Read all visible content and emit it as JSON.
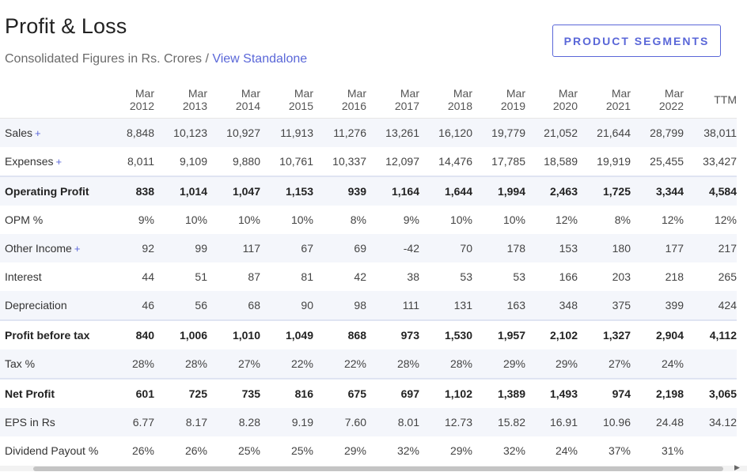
{
  "header": {
    "title": "Profit & Loss",
    "subtitle": "Consolidated Figures in Rs. Crores",
    "separator": " / ",
    "link": "View Standalone",
    "segments_button": "PRODUCT SEGMENTS"
  },
  "table": {
    "columns": [
      {
        "line1": "Mar",
        "line2": "2012"
      },
      {
        "line1": "Mar",
        "line2": "2013"
      },
      {
        "line1": "Mar",
        "line2": "2014"
      },
      {
        "line1": "Mar",
        "line2": "2015"
      },
      {
        "line1": "Mar",
        "line2": "2016"
      },
      {
        "line1": "Mar",
        "line2": "2017"
      },
      {
        "line1": "Mar",
        "line2": "2018"
      },
      {
        "line1": "Mar",
        "line2": "2019"
      },
      {
        "line1": "Mar",
        "line2": "2020"
      },
      {
        "line1": "Mar",
        "line2": "2021"
      },
      {
        "line1": "Mar",
        "line2": "2022"
      },
      {
        "line1": "TTM",
        "line2": ""
      }
    ],
    "rows": [
      {
        "label": "Sales",
        "expandable": true,
        "bold": false,
        "values": [
          "8,848",
          "10,123",
          "10,927",
          "11,913",
          "11,276",
          "13,261",
          "16,120",
          "19,779",
          "21,052",
          "21,644",
          "28,799",
          "38,011"
        ]
      },
      {
        "label": "Expenses",
        "expandable": true,
        "bold": false,
        "values": [
          "8,011",
          "9,109",
          "9,880",
          "10,761",
          "10,337",
          "12,097",
          "14,476",
          "17,785",
          "18,589",
          "19,919",
          "25,455",
          "33,427"
        ]
      },
      {
        "label": "Operating Profit",
        "expandable": false,
        "bold": true,
        "values": [
          "838",
          "1,014",
          "1,047",
          "1,153",
          "939",
          "1,164",
          "1,644",
          "1,994",
          "2,463",
          "1,725",
          "3,344",
          "4,584"
        ]
      },
      {
        "label": "OPM %",
        "expandable": false,
        "bold": false,
        "values": [
          "9%",
          "10%",
          "10%",
          "10%",
          "8%",
          "9%",
          "10%",
          "10%",
          "12%",
          "8%",
          "12%",
          "12%"
        ]
      },
      {
        "label": "Other Income",
        "expandable": true,
        "bold": false,
        "values": [
          "92",
          "99",
          "117",
          "67",
          "69",
          "-42",
          "70",
          "178",
          "153",
          "180",
          "177",
          "217"
        ]
      },
      {
        "label": "Interest",
        "expandable": false,
        "bold": false,
        "values": [
          "44",
          "51",
          "87",
          "81",
          "42",
          "38",
          "53",
          "53",
          "166",
          "203",
          "218",
          "265"
        ]
      },
      {
        "label": "Depreciation",
        "expandable": false,
        "bold": false,
        "values": [
          "46",
          "56",
          "68",
          "90",
          "98",
          "111",
          "131",
          "163",
          "348",
          "375",
          "399",
          "424"
        ]
      },
      {
        "label": "Profit before tax",
        "expandable": false,
        "bold": true,
        "values": [
          "840",
          "1,006",
          "1,010",
          "1,049",
          "868",
          "973",
          "1,530",
          "1,957",
          "2,102",
          "1,327",
          "2,904",
          "4,112"
        ]
      },
      {
        "label": "Tax %",
        "expandable": false,
        "bold": false,
        "values": [
          "28%",
          "28%",
          "27%",
          "22%",
          "22%",
          "28%",
          "28%",
          "29%",
          "29%",
          "27%",
          "24%",
          ""
        ]
      },
      {
        "label": "Net Profit",
        "expandable": false,
        "bold": true,
        "values": [
          "601",
          "725",
          "735",
          "816",
          "675",
          "697",
          "1,102",
          "1,389",
          "1,493",
          "974",
          "2,198",
          "3,065"
        ]
      },
      {
        "label": "EPS in Rs",
        "expandable": false,
        "bold": false,
        "values": [
          "6.77",
          "8.17",
          "8.28",
          "9.19",
          "7.60",
          "8.01",
          "12.73",
          "15.82",
          "16.91",
          "10.96",
          "24.48",
          "34.12"
        ]
      },
      {
        "label": "Dividend Payout %",
        "expandable": false,
        "bold": false,
        "values": [
          "26%",
          "26%",
          "25%",
          "25%",
          "29%",
          "32%",
          "29%",
          "32%",
          "24%",
          "37%",
          "31%",
          ""
        ]
      }
    ],
    "plus_symbol": "+"
  },
  "colors": {
    "accent": "#5a67d8",
    "row_alt": "#f4f6fb"
  }
}
